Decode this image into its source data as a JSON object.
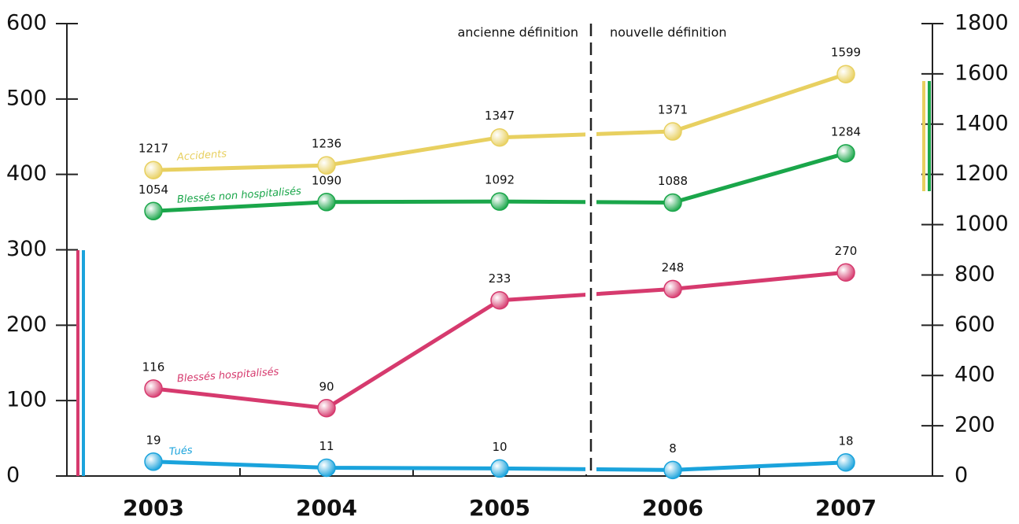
{
  "chart_data": {
    "type": "line",
    "categories": [
      "2003",
      "2004",
      "2005",
      "2006",
      "2007"
    ],
    "annotations": [
      "ancienne définition",
      "nouvelle définition"
    ],
    "series": [
      {
        "name": "Accidents",
        "color": "#e8d060",
        "axis": "y2",
        "values": [
          1217,
          1236,
          1347,
          1371,
          1599
        ]
      },
      {
        "name": "Blessés non hospitalisés",
        "color": "#1aa64a",
        "axis": "y2",
        "values": [
          1054,
          1090,
          1092,
          1088,
          1284
        ]
      },
      {
        "name": "Blessés hospitalisés",
        "color": "#d63a6e",
        "values": [
          116,
          90,
          233,
          248,
          270
        ]
      },
      {
        "name": "Tués",
        "color": "#1aa3dc",
        "values": [
          19,
          11,
          10,
          8,
          18
        ]
      }
    ],
    "ylim": [
      0,
      600
    ],
    "yticks": [
      0,
      100,
      200,
      300,
      400,
      500,
      600
    ],
    "y2lim": [
      0,
      1800
    ],
    "y2ticks": [
      0,
      200,
      400,
      600,
      800,
      1000,
      1200,
      1400,
      1600,
      1800
    ]
  }
}
